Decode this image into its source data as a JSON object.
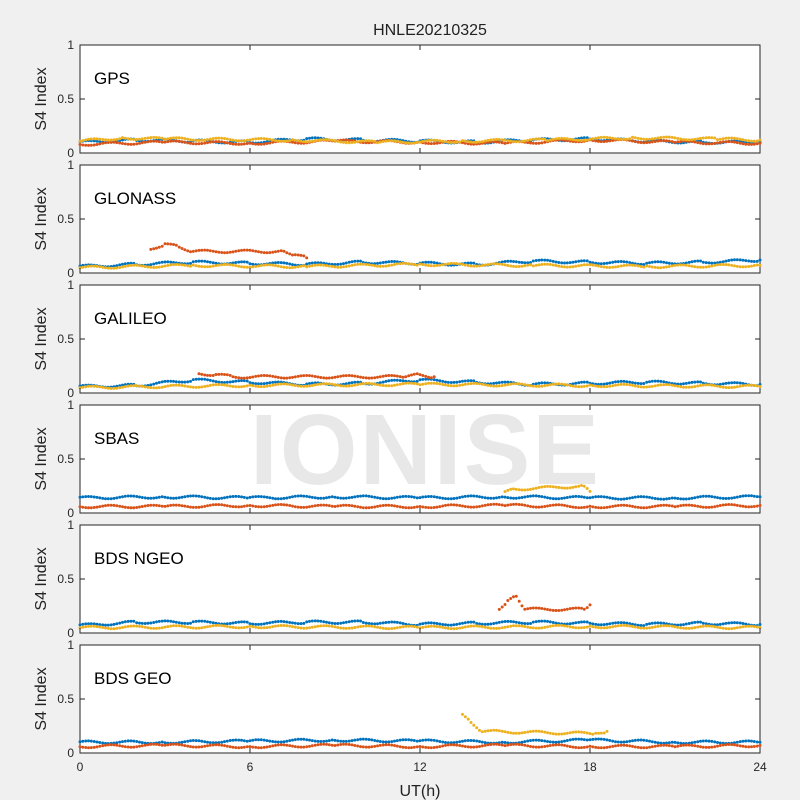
{
  "chart_data": {
    "type": "scatter",
    "title": "HNLE20210325",
    "xlabel": "UT(h)",
    "ylabel": "S4 Index",
    "xlim": [
      0,
      24
    ],
    "ylim": [
      0,
      1
    ],
    "xticks": [
      "0",
      "6",
      "12",
      "18",
      "24"
    ],
    "yticks": [
      "0",
      "0.5",
      "1"
    ],
    "grid": false,
    "series_colors": [
      "#0072BD",
      "#D95319",
      "#EDB120",
      "#7E2F8E",
      "#77AC30",
      "#4DBEEE",
      "#A2142F"
    ],
    "panels": [
      {
        "label": "GPS",
        "series": [
          {
            "x": [
              0,
              2,
              4,
              6,
              8,
              10,
              12,
              14,
              16,
              18,
              20,
              22,
              24
            ],
            "y": [
              0.1,
              0.12,
              0.11,
              0.1,
              0.13,
              0.12,
              0.11,
              0.1,
              0.12,
              0.13,
              0.11,
              0.1,
              0.1
            ]
          },
          {
            "x": [
              0,
              3,
              6,
              9,
              12,
              15,
              18,
              21,
              24
            ],
            "y": [
              0.08,
              0.1,
              0.09,
              0.11,
              0.1,
              0.09,
              0.12,
              0.1,
              0.09
            ]
          },
          {
            "x": [
              0,
              1.5,
              3,
              7.5,
              10.5,
              13.5,
              16.5,
              19.5,
              22.5,
              24
            ],
            "y": [
              0.11,
              0.14,
              0.13,
              0.12,
              0.1,
              0.11,
              0.12,
              0.14,
              0.13,
              0.12
            ]
          }
        ]
      },
      {
        "label": "GLONASS",
        "series": [
          {
            "x": [
              0,
              2,
              4,
              6,
              8,
              10,
              12,
              14,
              16,
              18,
              20,
              22,
              24
            ],
            "y": [
              0.06,
              0.08,
              0.1,
              0.09,
              0.08,
              0.1,
              0.09,
              0.08,
              0.11,
              0.1,
              0.09,
              0.1,
              0.12
            ]
          },
          {
            "x": [
              2.5,
              3,
              3.5,
              4,
              7.2,
              7.6,
              8
            ],
            "y": [
              0.22,
              0.27,
              0.24,
              0.2,
              0.2,
              0.17,
              0.14
            ]
          },
          {
            "x": [
              0,
              4,
              8,
              12,
              16,
              20,
              24
            ],
            "y": [
              0.05,
              0.07,
              0.06,
              0.08,
              0.07,
              0.06,
              0.07
            ]
          }
        ]
      },
      {
        "label": "GALILEO",
        "series": [
          {
            "x": [
              0,
              2,
              4,
              6,
              8,
              10,
              12,
              14,
              16,
              18,
              20,
              22,
              24
            ],
            "y": [
              0.06,
              0.07,
              0.12,
              0.1,
              0.08,
              0.09,
              0.12,
              0.1,
              0.08,
              0.09,
              0.1,
              0.09,
              0.08
            ]
          },
          {
            "x": [
              4.2,
              4.8,
              5.4,
              11.5,
              12,
              12.5
            ],
            "y": [
              0.18,
              0.17,
              0.15,
              0.15,
              0.17,
              0.15
            ]
          },
          {
            "x": [
              0,
              6,
              12,
              18,
              24
            ],
            "y": [
              0.05,
              0.07,
              0.08,
              0.07,
              0.06
            ]
          }
        ]
      },
      {
        "label": "SBAS",
        "series": [
          {
            "x": [
              0,
              3,
              6,
              9,
              12,
              15,
              18,
              21,
              24
            ],
            "y": [
              0.14,
              0.15,
              0.14,
              0.15,
              0.14,
              0.15,
              0.14,
              0.14,
              0.15
            ]
          },
          {
            "x": [
              0,
              3,
              6,
              9,
              12,
              15,
              18,
              21,
              24
            ],
            "y": [
              0.06,
              0.06,
              0.07,
              0.06,
              0.06,
              0.07,
              0.06,
              0.06,
              0.07
            ]
          },
          {
            "x": [
              15,
              15.3,
              17.8,
              18
            ],
            "y": [
              0.2,
              0.22,
              0.25,
              0.2
            ]
          }
        ]
      },
      {
        "label": "BDS NGEO",
        "series": [
          {
            "x": [
              0,
              2,
              4,
              6,
              8,
              10,
              12,
              14,
              16,
              18,
              20,
              22,
              24
            ],
            "y": [
              0.07,
              0.1,
              0.1,
              0.09,
              0.1,
              0.1,
              0.08,
              0.09,
              0.1,
              0.09,
              0.08,
              0.09,
              0.08
            ]
          },
          {
            "x": [
              14.8,
              15.1,
              15.4,
              15.7,
              17.8,
              18
            ],
            "y": [
              0.22,
              0.3,
              0.34,
              0.22,
              0.22,
              0.26
            ]
          },
          {
            "x": [
              0,
              6,
              12,
              18,
              24
            ],
            "y": [
              0.05,
              0.06,
              0.05,
              0.06,
              0.05
            ]
          }
        ]
      },
      {
        "label": "BDS GEO",
        "series": [
          {
            "x": [
              0,
              3,
              6,
              9,
              12,
              15,
              18,
              21,
              24
            ],
            "y": [
              0.1,
              0.1,
              0.11,
              0.12,
              0.11,
              0.1,
              0.12,
              0.1,
              0.1
            ]
          },
          {
            "x": [
              0,
              3,
              6,
              9,
              12,
              15,
              18,
              21,
              24
            ],
            "y": [
              0.06,
              0.07,
              0.06,
              0.07,
              0.06,
              0.07,
              0.06,
              0.06,
              0.07
            ]
          },
          {
            "x": [
              13.5,
              13.8,
              14.2,
              18.2,
              18.6
            ],
            "y": [
              0.36,
              0.28,
              0.2,
              0.18,
              0.2
            ]
          }
        ]
      }
    ]
  },
  "watermark": "IONISE"
}
